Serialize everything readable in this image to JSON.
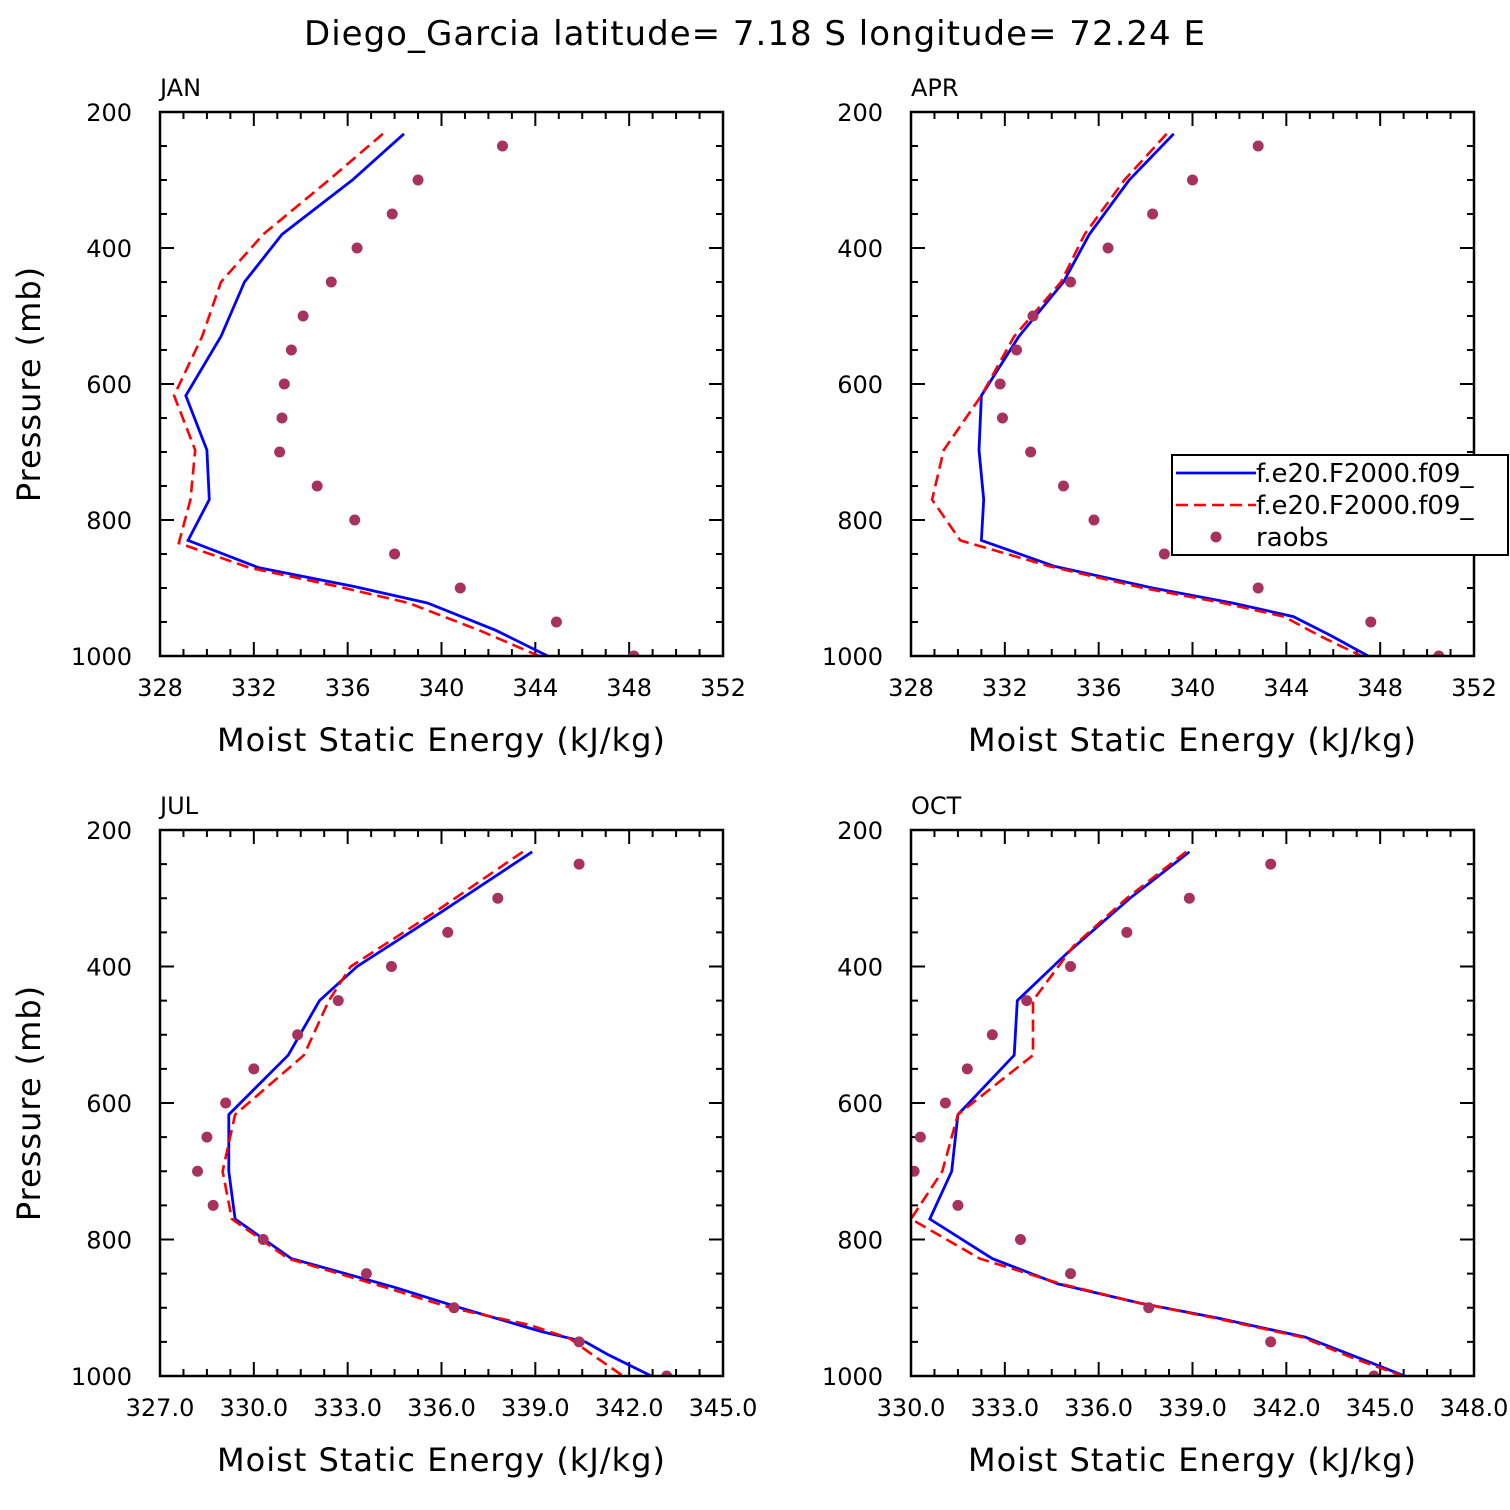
{
  "figure": {
    "title": "Diego_Garcia  latitude= 7.18 S longitude= 72.24 E",
    "colors": {
      "model1": "#0000ff",
      "model2": "#ff0000",
      "obs": "#a8325e",
      "axis": "#000000"
    }
  },
  "chart_data": [
    {
      "type": "line",
      "panel_title": "JAN",
      "xlabel": "Moist Static Energy (kJ/kg)",
      "ylabel": "Pressure (mb)",
      "xlim": [
        328,
        352
      ],
      "ylim": [
        200,
        1000
      ],
      "y_inverted": true,
      "x_ticks": [
        "328",
        "332",
        "336",
        "340",
        "344",
        "348",
        "352"
      ],
      "y_ticks": [
        "200",
        "400",
        "600",
        "800",
        "1000"
      ],
      "legend": null,
      "series": [
        {
          "name": "f.e20.F2000.f09_",
          "style": "solid",
          "points": [
            [
              338.4,
              232
            ],
            [
              336.2,
              300
            ],
            [
              333.2,
              380
            ],
            [
              331.6,
              450
            ],
            [
              330.6,
              530
            ],
            [
              329.1,
              617
            ],
            [
              330.0,
              697
            ],
            [
              330.1,
              770
            ],
            [
              329.2,
              830
            ],
            [
              332.2,
              870
            ],
            [
              336.3,
              898
            ],
            [
              339.4,
              922
            ],
            [
              342.3,
              962
            ],
            [
              344.7,
              1003
            ]
          ]
        },
        {
          "name": "f.e20.F2000.f09_",
          "style": "dashed",
          "points": [
            [
              337.5,
              232
            ],
            [
              335.2,
              300
            ],
            [
              332.4,
              380
            ],
            [
              330.6,
              450
            ],
            [
              329.8,
              530
            ],
            [
              328.6,
              617
            ],
            [
              329.5,
              697
            ],
            [
              329.3,
              770
            ],
            [
              328.8,
              834
            ],
            [
              331.8,
              870
            ],
            [
              335.6,
              898
            ],
            [
              338.6,
              922
            ],
            [
              341.6,
              962
            ],
            [
              344.5,
              1005
            ]
          ]
        },
        {
          "name": "raobs",
          "style": "markers",
          "points": [
            [
              342.6,
              250
            ],
            [
              339.0,
              300
            ],
            [
              337.9,
              350
            ],
            [
              336.4,
              400
            ],
            [
              335.3,
              450
            ],
            [
              334.1,
              500
            ],
            [
              333.6,
              550
            ],
            [
              333.3,
              600
            ],
            [
              333.2,
              650
            ],
            [
              333.1,
              700
            ],
            [
              334.7,
              750
            ],
            [
              336.3,
              800
            ],
            [
              338.0,
              850
            ],
            [
              340.8,
              900
            ],
            [
              344.9,
              950
            ],
            [
              348.2,
              1000
            ]
          ]
        }
      ]
    },
    {
      "type": "line",
      "panel_title": "APR",
      "xlabel": "Moist Static Energy (kJ/kg)",
      "ylabel": "",
      "xlim": [
        328,
        352
      ],
      "ylim": [
        200,
        1000
      ],
      "y_inverted": true,
      "x_ticks": [
        "328",
        "332",
        "336",
        "340",
        "344",
        "348",
        "352"
      ],
      "y_ticks": [
        "200",
        "400",
        "600",
        "800",
        "1000"
      ],
      "legend": {
        "placement": "right",
        "entries": [
          "f.e20.F2000.f09_",
          "f.e20.F2000.f09_",
          "raobs"
        ]
      },
      "series": [
        {
          "name": "f.e20.F2000.f09_",
          "style": "solid",
          "points": [
            [
              339.2,
              232
            ],
            [
              337.3,
              300
            ],
            [
              335.6,
              380
            ],
            [
              334.5,
              450
            ],
            [
              332.6,
              530
            ],
            [
              331.0,
              617
            ],
            [
              330.9,
              697
            ],
            [
              331.1,
              770
            ],
            [
              331.0,
              830
            ],
            [
              334.1,
              868
            ],
            [
              338.3,
              900
            ],
            [
              341.7,
              922
            ],
            [
              344.3,
              942
            ],
            [
              345.9,
              970
            ],
            [
              347.6,
              1002
            ]
          ]
        },
        {
          "name": "f.e20.F2000.f09_",
          "style": "dashed",
          "points": [
            [
              338.9,
              232
            ],
            [
              337.1,
              300
            ],
            [
              335.4,
              380
            ],
            [
              334.4,
              450
            ],
            [
              332.4,
              530
            ],
            [
              331.0,
              617
            ],
            [
              329.4,
              697
            ],
            [
              328.9,
              770
            ],
            [
              330.1,
              830
            ],
            [
              333.9,
              868
            ],
            [
              337.9,
              900
            ],
            [
              341.3,
              922
            ],
            [
              343.9,
              942
            ],
            [
              345.4,
              970
            ],
            [
              347.2,
              1000
            ]
          ]
        },
        {
          "name": "raobs",
          "style": "markers",
          "points": [
            [
              342.8,
              250
            ],
            [
              340.0,
              300
            ],
            [
              338.3,
              350
            ],
            [
              336.4,
              400
            ],
            [
              334.8,
              450
            ],
            [
              333.2,
              500
            ],
            [
              332.5,
              550
            ],
            [
              331.8,
              600
            ],
            [
              331.9,
              650
            ],
            [
              333.1,
              700
            ],
            [
              334.5,
              750
            ],
            [
              335.8,
              800
            ],
            [
              338.8,
              850
            ],
            [
              342.8,
              900
            ],
            [
              347.6,
              950
            ],
            [
              350.5,
              1000
            ]
          ]
        }
      ]
    },
    {
      "type": "line",
      "panel_title": "JUL",
      "xlabel": "Moist Static Energy (kJ/kg)",
      "ylabel": "Pressure (mb)",
      "xlim": [
        327,
        345
      ],
      "ylim": [
        200,
        1000
      ],
      "y_inverted": true,
      "x_ticks": [
        "327.0",
        "330.0",
        "333.0",
        "336.0",
        "339.0",
        "342.0",
        "345.0"
      ],
      "y_ticks": [
        "200",
        "400",
        "600",
        "800",
        "1000"
      ],
      "legend": null,
      "series": [
        {
          "name": "f.e20.F2000.f09_",
          "style": "solid",
          "points": [
            [
              338.9,
              232
            ],
            [
              336.0,
              320
            ],
            [
              333.3,
              400
            ],
            [
              332.1,
              450
            ],
            [
              331.1,
              530
            ],
            [
              329.2,
              617
            ],
            [
              329.2,
              700
            ],
            [
              329.4,
              770
            ],
            [
              331.2,
              828
            ],
            [
              334.5,
              870
            ],
            [
              336.6,
              900
            ],
            [
              339.2,
              935
            ],
            [
              340.6,
              950
            ],
            [
              341.3,
              968
            ],
            [
              342.8,
              1002
            ]
          ]
        },
        {
          "name": "f.e20.F2000.f09_",
          "style": "dashed",
          "points": [
            [
              338.6,
              232
            ],
            [
              335.8,
              320
            ],
            [
              333.1,
              400
            ],
            [
              332.4,
              450
            ],
            [
              331.6,
              530
            ],
            [
              329.4,
              617
            ],
            [
              329.0,
              700
            ],
            [
              329.3,
              770
            ],
            [
              331.1,
              828
            ],
            [
              334.2,
              870
            ],
            [
              336.3,
              900
            ],
            [
              338.8,
              925
            ],
            [
              340.1,
              945
            ],
            [
              340.8,
              968
            ],
            [
              341.9,
              1003
            ]
          ]
        },
        {
          "name": "raobs",
          "style": "markers",
          "points": [
            [
              340.4,
              250
            ],
            [
              337.8,
              300
            ],
            [
              336.2,
              350
            ],
            [
              334.4,
              400
            ],
            [
              332.7,
              450
            ],
            [
              331.4,
              500
            ],
            [
              330.0,
              550
            ],
            [
              329.1,
              600
            ],
            [
              328.5,
              650
            ],
            [
              328.2,
              700
            ],
            [
              328.7,
              750
            ],
            [
              330.3,
              800
            ],
            [
              333.6,
              850
            ],
            [
              336.4,
              900
            ],
            [
              340.4,
              950
            ],
            [
              343.2,
              1000
            ]
          ]
        }
      ]
    },
    {
      "type": "line",
      "panel_title": "OCT",
      "xlabel": "Moist Static Energy (kJ/kg)",
      "ylabel": "",
      "xlim": [
        330,
        348
      ],
      "ylim": [
        200,
        1000
      ],
      "y_inverted": true,
      "x_ticks": [
        "330.0",
        "333.0",
        "336.0",
        "339.0",
        "342.0",
        "345.0",
        "348.0"
      ],
      "y_ticks": [
        "200",
        "400",
        "600",
        "800",
        "1000"
      ],
      "legend": null,
      "series": [
        {
          "name": "f.e20.F2000.f09_",
          "style": "solid",
          "points": [
            [
              338.9,
              232
            ],
            [
              337.0,
              300
            ],
            [
              335.0,
              380
            ],
            [
              333.4,
              450
            ],
            [
              333.3,
              530
            ],
            [
              331.5,
              617
            ],
            [
              331.3,
              700
            ],
            [
              330.6,
              770
            ],
            [
              332.6,
              828
            ],
            [
              334.7,
              865
            ],
            [
              337.3,
              893
            ],
            [
              339.8,
              915
            ],
            [
              342.6,
              943
            ],
            [
              344.4,
              975
            ],
            [
              345.9,
              1002
            ]
          ]
        },
        {
          "name": "f.e20.F2000.f09_",
          "style": "dashed",
          "points": [
            [
              338.8,
              232
            ],
            [
              336.9,
              300
            ],
            [
              335.2,
              370
            ],
            [
              333.9,
              450
            ],
            [
              333.9,
              530
            ],
            [
              331.5,
              617
            ],
            [
              331.0,
              700
            ],
            [
              330.0,
              770
            ],
            [
              332.2,
              828
            ],
            [
              334.8,
              865
            ],
            [
              337.3,
              893
            ],
            [
              339.7,
              915
            ],
            [
              342.5,
              943
            ],
            [
              344.2,
              975
            ],
            [
              345.9,
              1003
            ]
          ]
        },
        {
          "name": "raobs",
          "style": "markers",
          "points": [
            [
              341.5,
              250
            ],
            [
              338.9,
              300
            ],
            [
              336.9,
              350
            ],
            [
              335.1,
              400
            ],
            [
              333.7,
              450
            ],
            [
              332.6,
              500
            ],
            [
              331.8,
              550
            ],
            [
              331.1,
              600
            ],
            [
              330.3,
              650
            ],
            [
              330.1,
              700
            ],
            [
              331.5,
              750
            ],
            [
              333.5,
              800
            ],
            [
              335.1,
              850
            ],
            [
              337.6,
              900
            ],
            [
              341.5,
              950
            ],
            [
              344.8,
              1000
            ]
          ]
        }
      ]
    }
  ]
}
